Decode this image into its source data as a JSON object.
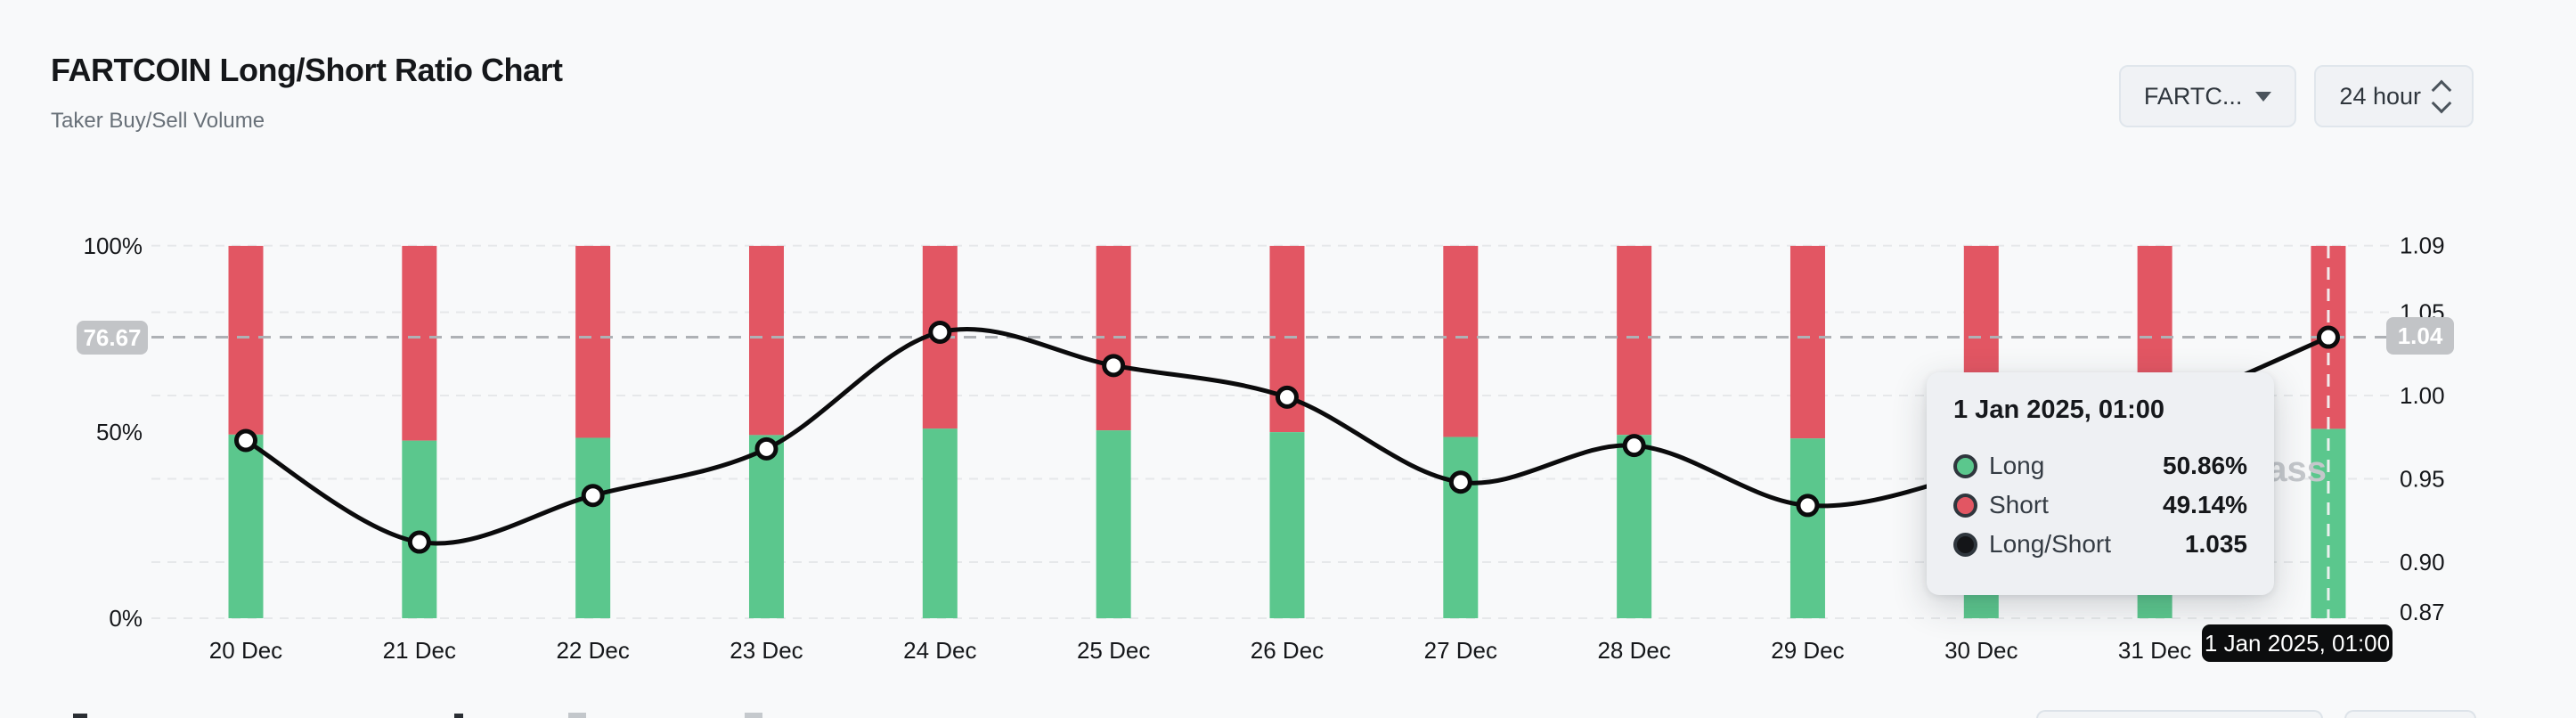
{
  "page": {
    "background": "#f8f9fa"
  },
  "header": {
    "title": "FARTCOIN Long/Short Ratio Chart",
    "subtitle": "Taker Buy/Sell Volume",
    "symbol_select": {
      "value": "FARTC...",
      "icon": "caret-down"
    },
    "interval_select": {
      "value": "24 hour",
      "icon": "sort-arrows"
    }
  },
  "chart_data": {
    "type": "stacked-bar-with-line",
    "title": "FARTCOIN Long/Short Ratio Chart",
    "categories": [
      "20 Dec",
      "21 Dec",
      "22 Dec",
      "23 Dec",
      "24 Dec",
      "25 Dec",
      "26 Dec",
      "27 Dec",
      "28 Dec",
      "29 Dec",
      "30 Dec",
      "31 Dec",
      "1 Jan"
    ],
    "series": [
      {
        "name": "Long",
        "type": "bar",
        "color": "#5bc78d",
        "unit": "%",
        "values": [
          49.32,
          47.7,
          48.45,
          49.19,
          50.93,
          50.45,
          49.97,
          48.67,
          49.24,
          48.29,
          48.85,
          49.75,
          50.86
        ]
      },
      {
        "name": "Short",
        "type": "bar",
        "color": "#e25663",
        "unit": "%",
        "values": [
          50.68,
          52.3,
          51.55,
          50.81,
          49.07,
          49.55,
          50.03,
          51.33,
          50.76,
          51.71,
          51.15,
          50.25,
          49.14
        ]
      },
      {
        "name": "Long/Short",
        "type": "line",
        "color": "#0b0b0c",
        "values": [
          0.973,
          0.912,
          0.94,
          0.968,
          1.038,
          1.018,
          0.999,
          0.948,
          0.97,
          0.934,
          0.955,
          0.99,
          1.035
        ]
      }
    ],
    "left_axis": {
      "ticks": [
        "100%",
        "50%",
        "0%"
      ],
      "range": [
        0,
        100
      ]
    },
    "right_axis": {
      "ticks": [
        "1.09",
        "1.05",
        "1.00",
        "0.95",
        "0.90",
        "0.87"
      ],
      "tick_values": [
        1.09,
        1.05,
        1.0,
        0.95,
        0.9,
        0.87
      ],
      "range": [
        0.861,
        1.09
      ]
    },
    "grid": "horizontal-dashed",
    "legend_position": "none",
    "watermark": "coinglass"
  },
  "crosshair": {
    "left_badge": "76.67",
    "right_badge": "1.04",
    "x_badge": "1 Jan 2025, 01:00",
    "snapped_value": 1.035
  },
  "tooltip": {
    "title": "1 Jan 2025, 01:00",
    "rows": [
      {
        "label": "Long",
        "value": "50.86%",
        "marker_color": "#5bc78d"
      },
      {
        "label": "Short",
        "value": "49.14%",
        "marker_color": "#e25663"
      },
      {
        "label": "Long/Short",
        "value": "1.035",
        "marker_color": "#141518"
      }
    ]
  }
}
